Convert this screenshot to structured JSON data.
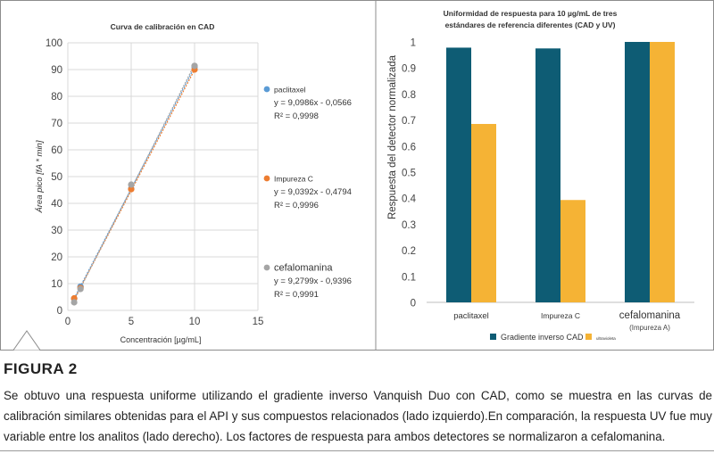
{
  "chart_data": [
    {
      "type": "scatter",
      "title": "Curva de calibración en CAD",
      "xlabel": "Concentración [µg/mL]",
      "ylabel": "Área pico [fA * min]",
      "xlim": [
        0,
        15
      ],
      "ylim": [
        0,
        100
      ],
      "xticks": [
        "0",
        "5",
        "10",
        "15"
      ],
      "yticks": [
        "0",
        "10",
        "20",
        "30",
        "40",
        "50",
        "60",
        "70",
        "80",
        "90",
        "100"
      ],
      "grid": true,
      "legend_position": "right",
      "series": [
        {
          "name": "paclitaxel",
          "color": "#5b9bd5",
          "equation": "y = 9,0986x - 0,0566",
          "r2": "R² = 0,9998",
          "x": [
            0.5,
            1,
            5,
            10
          ],
          "y": [
            4.4,
            8.9,
            45.5,
            91.0
          ]
        },
        {
          "name": "Impureza C",
          "color": "#ed7d31",
          "equation": "y = 9,0392x - 0,4794",
          "r2": "R² = 0,9996",
          "x": [
            0.5,
            1,
            5,
            10
          ],
          "y": [
            4.5,
            8.4,
            45.3,
            90.0
          ]
        },
        {
          "name": "cefalomanina",
          "color": "#a5a5a5",
          "equation": "y = 9,2799x - 0,9396",
          "r2": "R² = 0,9991",
          "x": [
            0.5,
            1,
            5,
            10
          ],
          "y": [
            3.0,
            8.0,
            47.0,
            91.4
          ]
        }
      ]
    },
    {
      "type": "bar",
      "title_lines": [
        "Uniformidad de respuesta para 10 µg/mL de tres",
        "estándares de referencia diferentes (CAD y UV)"
      ],
      "ylabel": "Respuesta del detector normalizada",
      "ylim": [
        0,
        1
      ],
      "yticks": [
        "0",
        "0.1",
        "0.2",
        "0.3",
        "0.4",
        "0.5",
        "0.6",
        "0.7",
        "0.8",
        "0.9",
        "1"
      ],
      "categories": [
        "paclitaxel",
        "Impureza C",
        "cefalomanina"
      ],
      "category_sublabels": [
        "",
        "",
        "(Impureza A)"
      ],
      "legend_position": "bottom",
      "series": [
        {
          "name": "Gradiente inverso CAD",
          "color": "#0e5c74",
          "values": [
            0.978,
            0.975,
            1.0
          ]
        },
        {
          "name": "ultravioleta",
          "color": "#f5b335",
          "values": [
            0.685,
            0.393,
            1.0
          ]
        }
      ]
    }
  ],
  "figure_label": "FIGURA 2",
  "caption": "Se obtuvo una respuesta uniforme utilizando el gradiente inverso Vanquish Duo con CAD, como se muestra en las curvas de calibración similares obtenidas para el API y sus compuestos relacionados (lado izquierdo).En comparación, la respuesta UV fue muy variable entre los analitos (lado derecho). Los factores de respuesta para ambos detectores se normalizaron a cefalomanina.",
  "colors": {
    "frame": "#8c8c8c",
    "grid": "#d9d9d9"
  }
}
